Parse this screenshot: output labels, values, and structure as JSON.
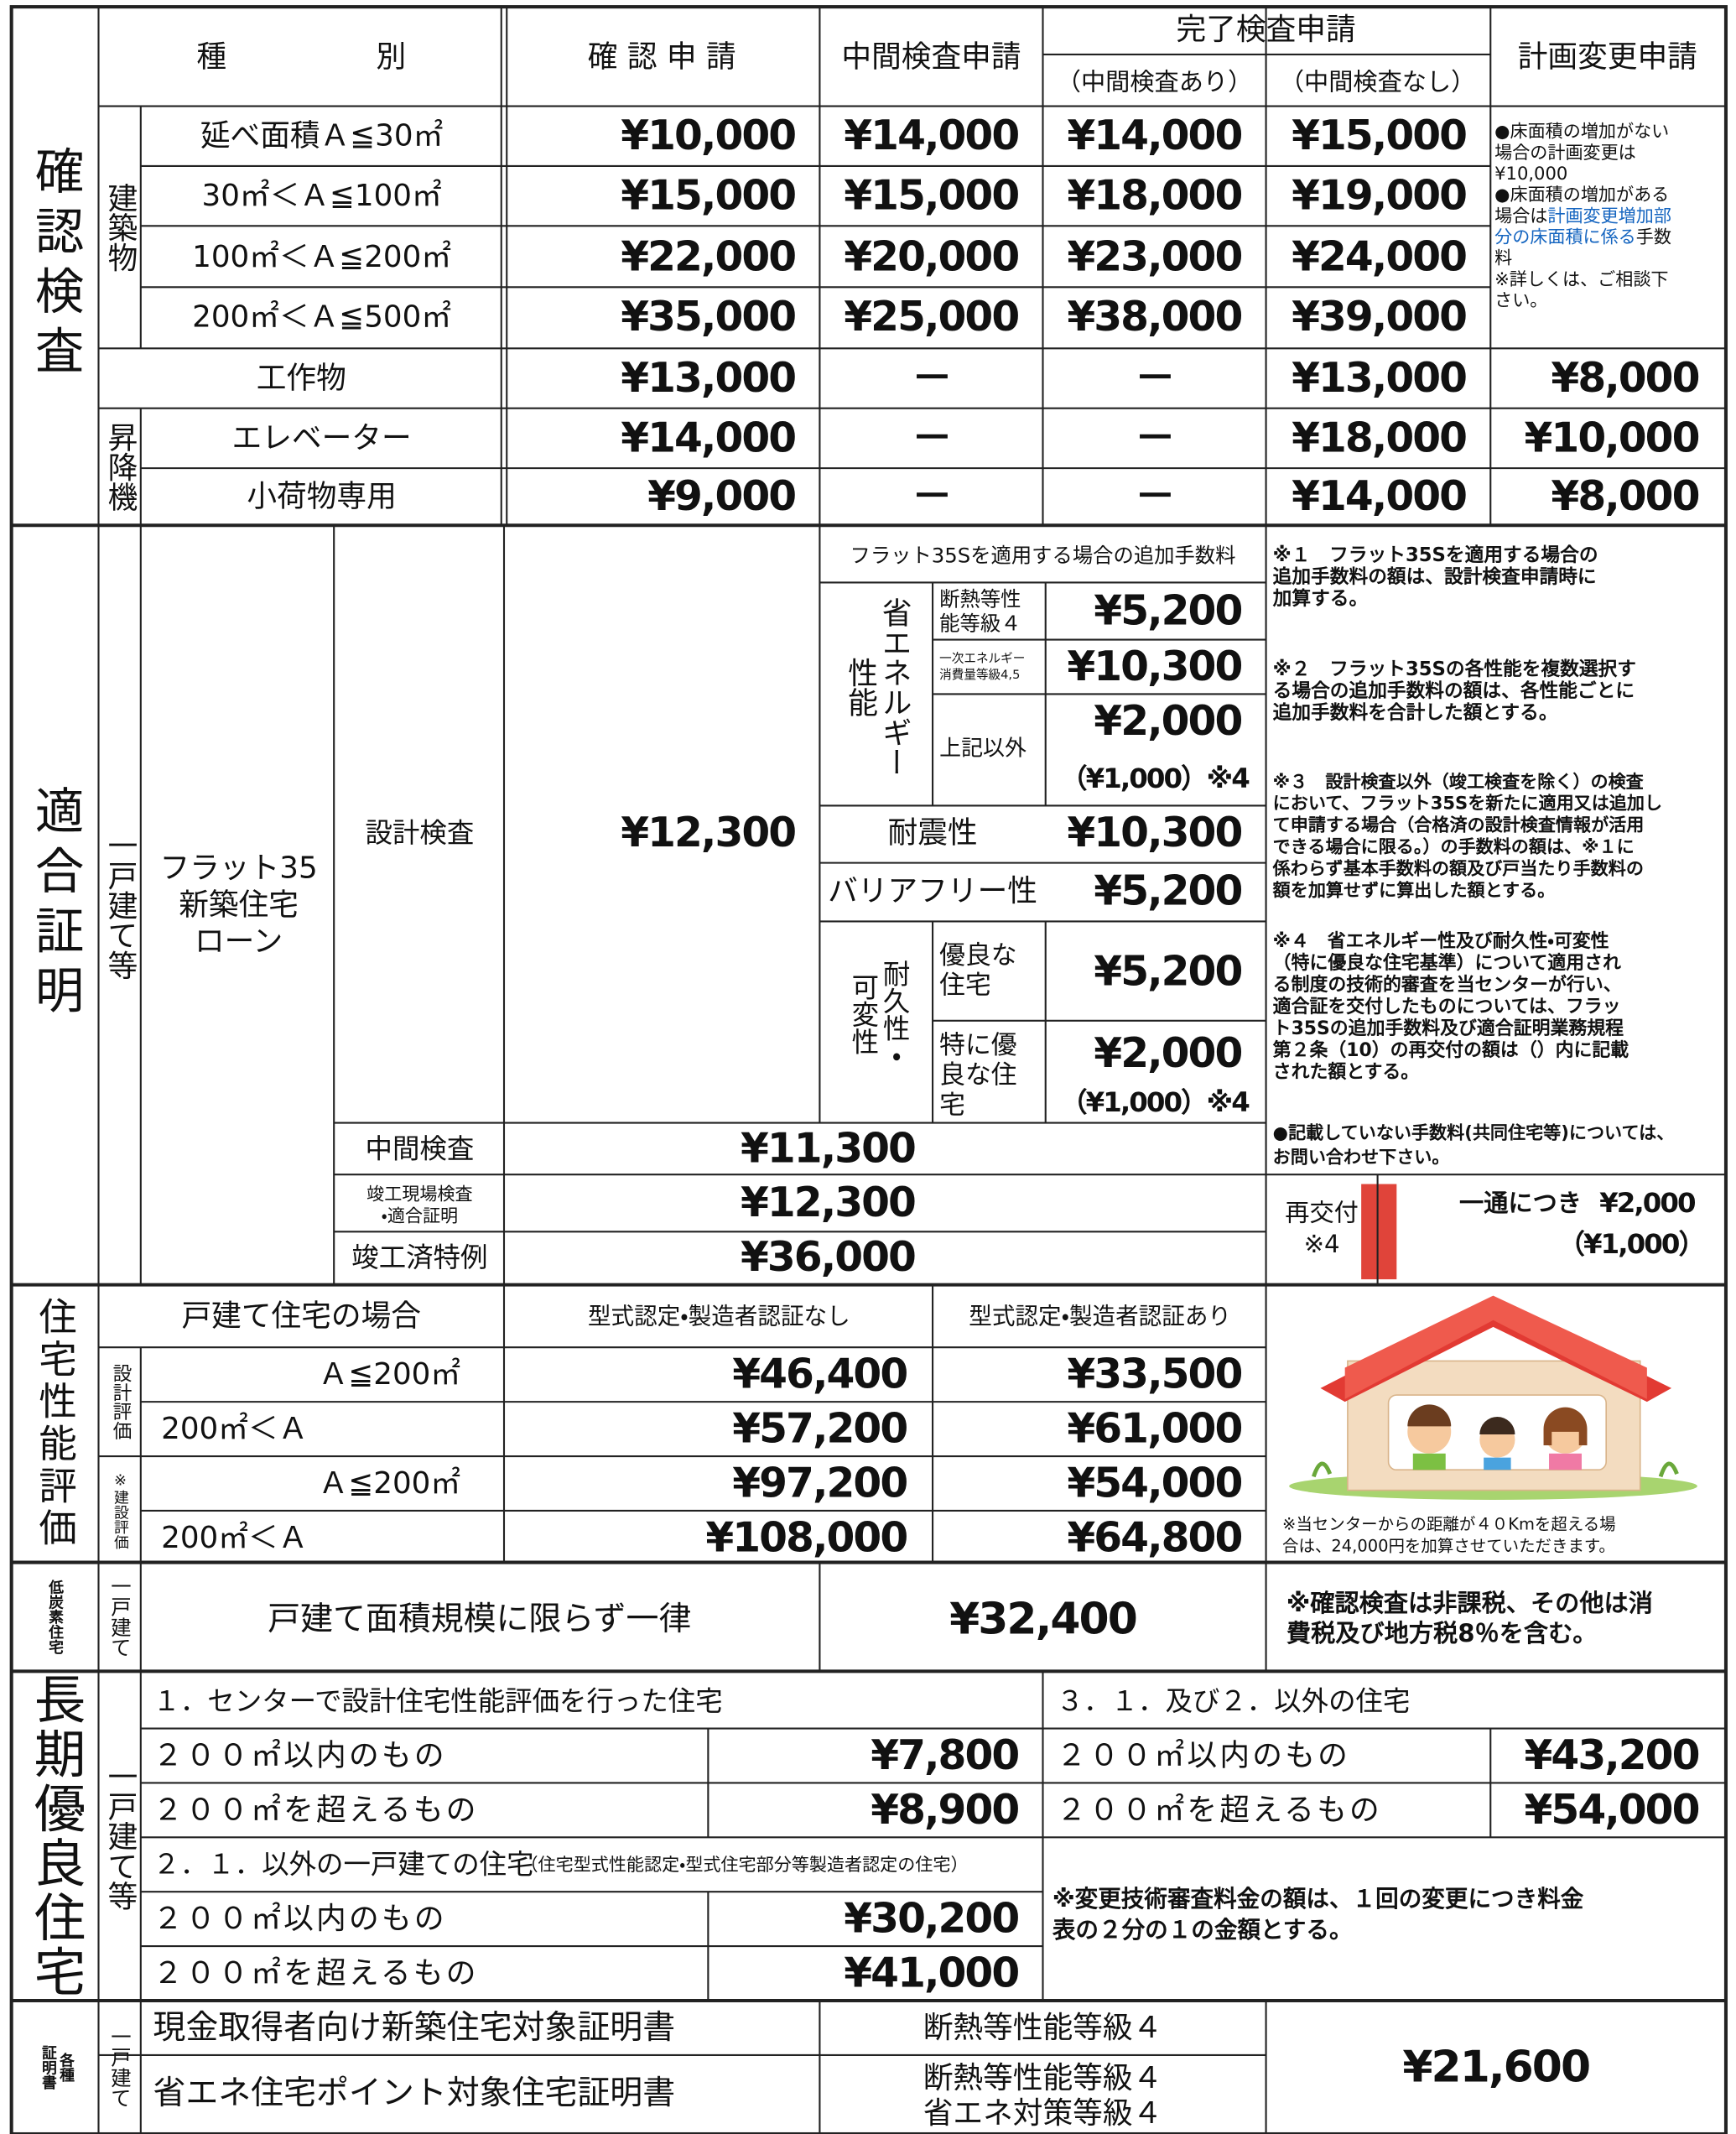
{
  "kakunin": {
    "label": "確認検査",
    "header": {
      "type": "種　　　　　別",
      "kakunin": "確 認 申 請",
      "chukan": "中間検査申請",
      "kanryo": "完了検査申請",
      "ari": "（中間検査あり）",
      "nashi": "（中間検査なし）",
      "henko": "計画変更申請"
    },
    "building": "建築物",
    "rows": [
      {
        "name": "延べ面積Ａ≦30㎡",
        "fees": [
          "¥10,000",
          "¥14,000",
          "¥14,000",
          "¥15,000"
        ]
      },
      {
        "name": "30㎡＜Ａ≦100㎡",
        "fees": [
          "¥15,000",
          "¥15,000",
          "¥18,000",
          "¥19,000"
        ]
      },
      {
        "name": "100㎡＜Ａ≦200㎡",
        "fees": [
          "¥22,000",
          "¥20,000",
          "¥23,000",
          "¥24,000"
        ]
      },
      {
        "name": "200㎡＜Ａ≦500㎡",
        "fees": [
          "¥35,000",
          "¥25,000",
          "¥38,000",
          "¥39,000"
        ]
      }
    ],
    "change_note": [
      [
        "●床面積の増加がない"
      ],
      [
        "場合の計画変更は"
      ],
      [
        "¥10,000"
      ],
      [
        "●床面積の増加がある"
      ],
      [
        "場合は",
        {
          "text": "計画変更増加部",
          "color": "#1565c0"
        }
      ],
      [
        {
          "text": "分の床面積に係る",
          "color": "#1565c0"
        },
        "手数"
      ],
      [
        "料"
      ],
      [
        "※詳しくは、ご相談下"
      ],
      [
        "さい。"
      ]
    ],
    "kousakubutsu": {
      "name": "工作物",
      "fees": [
        "¥13,000",
        "－",
        "－",
        "¥13,000",
        "¥8,000"
      ]
    },
    "shokoki": "昇降機",
    "elevators": [
      {
        "name": "エレベーター",
        "fees": [
          "¥14,000",
          "－",
          "－",
          "¥18,000",
          "¥10,000"
        ]
      },
      {
        "name": "小荷物専用",
        "fees": [
          "¥9,000",
          "－",
          "－",
          "¥14,000",
          "¥8,000"
        ]
      }
    ]
  },
  "tekigo": {
    "label": "適合証明",
    "kind": "一戸建て等",
    "loan": [
      "フラット35",
      "新築住宅",
      "ローン"
    ],
    "sekkei": {
      "name": "設計検査",
      "fee": "¥12,300"
    },
    "flat_header": "フラット35Sを適用する場合の追加手数料",
    "energy_label": [
      "省エネルギー",
      "性能"
    ],
    "energy": [
      {
        "name": [
          "断熱等性",
          "能等級４"
        ],
        "fee": "¥5,200"
      },
      {
        "name": [
          "一次エネルギー",
          "消費量等級4,5"
        ],
        "fee": "¥10,300"
      },
      {
        "name": [
          "上記以外"
        ],
        "fee": "¥2,000",
        "note": "（¥1,000）※4"
      }
    ],
    "taishin": {
      "name": "耐震性",
      "fee": "¥10,300"
    },
    "barrier": {
      "name": "バリアフリー性",
      "fee": "¥5,200"
    },
    "durable_label": [
      "耐久性・",
      "可変性"
    ],
    "durable": [
      {
        "name": [
          "優良な",
          "住宅"
        ],
        "fee": "¥5,200"
      },
      {
        "name": [
          "特に優",
          "良な住",
          "宅"
        ],
        "fee": "¥2,000",
        "note": "（¥1,000）※4"
      }
    ],
    "others": [
      {
        "name": [
          "中間検査"
        ],
        "fee": "¥11,300"
      },
      {
        "name": [
          "竣工現場検査",
          "・適合証明"
        ],
        "fee": "¥12,300"
      },
      {
        "name": [
          "竣工済特例"
        ],
        "fee": "¥36,000"
      }
    ],
    "notes": [
      [
        "※１　フラット35Sを適用する場合の",
        "追加手数料の額は、設計検査申請時に",
        "加算する。"
      ],
      [
        "※２　フラット35Sの各性能を複数選択す",
        "る場合の追加手数料の額は、各性能ごとに",
        "追加手数料を合計した額とする。"
      ],
      [
        "※３　設計検査以外（竣工検査を除く）の検査",
        "において、フラット35Sを新たに適用又は追加し",
        "て申請する場合（合格済の設計検査情報が活用",
        "できる場合に限る。）の手数料の額は、※１に",
        "係わらず基本手数料の額及び戸当たり手数料の",
        "額を加算せずに算出した額とする。"
      ],
      [
        "※４　省エネルギー性及び耐久性・可変性",
        "（特に優良な住宅基準）について適用され",
        "る制度の技術的審査を当センターが行い、",
        "適合証を交付したものについては、フラッ",
        "ト35Sの追加手数料及び適合証明業務規程",
        "第２条（10）の再交付の額は（）内に記載",
        "された額とする。"
      ]
    ],
    "contact": [
      "●記載していない手数料(共同住宅等)については、",
      "お問い合わせ下さい。"
    ],
    "reissue": {
      "label": [
        "再交付",
        "※4"
      ],
      "unit": "一通につき",
      "fee": "¥2,000",
      "note": "（¥1,000）"
    }
  },
  "seino": {
    "label": "住宅性能評価",
    "header": {
      "case": "戸建て住宅の場合",
      "without": "型式認定・製造者認証なし",
      "with": "型式認定・製造者認証あり"
    },
    "design_label": "設計評価",
    "construction_label": "※建設評価",
    "rows": [
      {
        "name": "Ａ≦200㎡",
        "fees": [
          "¥46,400",
          "¥33,500"
        ]
      },
      {
        "name": "200㎡＜Ａ",
        "fees": [
          "¥57,200",
          "¥61,000"
        ]
      },
      {
        "name": "Ａ≦200㎡",
        "fees": [
          "¥97,200",
          "¥54,000"
        ]
      },
      {
        "name": "200㎡＜Ａ",
        "fees": [
          "¥108,000",
          "¥64,800"
        ]
      }
    ],
    "distance_note": [
      "※当センターからの距離が４０Kmを超える場",
      "合は、24,000円を加算させていただきます。"
    ]
  },
  "teitanso": {
    "label": "低炭素住宅",
    "kind": "一戸建て",
    "name": "戸建て面積規模に限らず一律",
    "fee": "¥32,400",
    "tax_note": [
      "※確認検査は非課税、その他は消",
      "費税及び地方税8％を含む。"
    ]
  },
  "choki": {
    "label": "長期優良住宅",
    "kind": "一戸建て等",
    "group1": "１．センターで設計住宅性能評価を行った住宅",
    "group1_rows": [
      {
        "name": "２００㎡以内のもの",
        "fee": "¥7,800"
      },
      {
        "name": "２００㎡を超えるもの",
        "fee": "¥8,900"
      }
    ],
    "group3": "３．１．及び２．以外の住宅",
    "group3_rows": [
      {
        "name": "２００㎡以内のもの",
        "fee": "¥43,200"
      },
      {
        "name": "２００㎡を超えるもの",
        "fee": "¥54,000"
      }
    ],
    "group2": "２．１．以外の一戸建ての住宅",
    "group2_sub": "（住宅型式性能認定・型式住宅部分等製造者認定の住宅）",
    "group2_rows": [
      {
        "name": "２００㎡以内のもの",
        "fee": "¥30,200"
      },
      {
        "name": "２００㎡を超えるもの",
        "fee": "¥41,000"
      }
    ],
    "change_note": [
      "※変更技術審査料金の額は、１回の変更につき料金",
      "表の２分の１の金額とする。"
    ]
  },
  "shomei": {
    "label": [
      "各種",
      "証明書"
    ],
    "kind": "一戸建て",
    "rows": [
      {
        "name": "現金取得者向け新築住宅対象証明書",
        "grade": [
          "断熱等性能等級４"
        ]
      },
      {
        "name": "省エネ住宅ポイント対象住宅証明書",
        "grade": [
          "断熱等性能等級４",
          "省エネ対策等級４"
        ]
      }
    ],
    "fee": "¥21,600"
  }
}
